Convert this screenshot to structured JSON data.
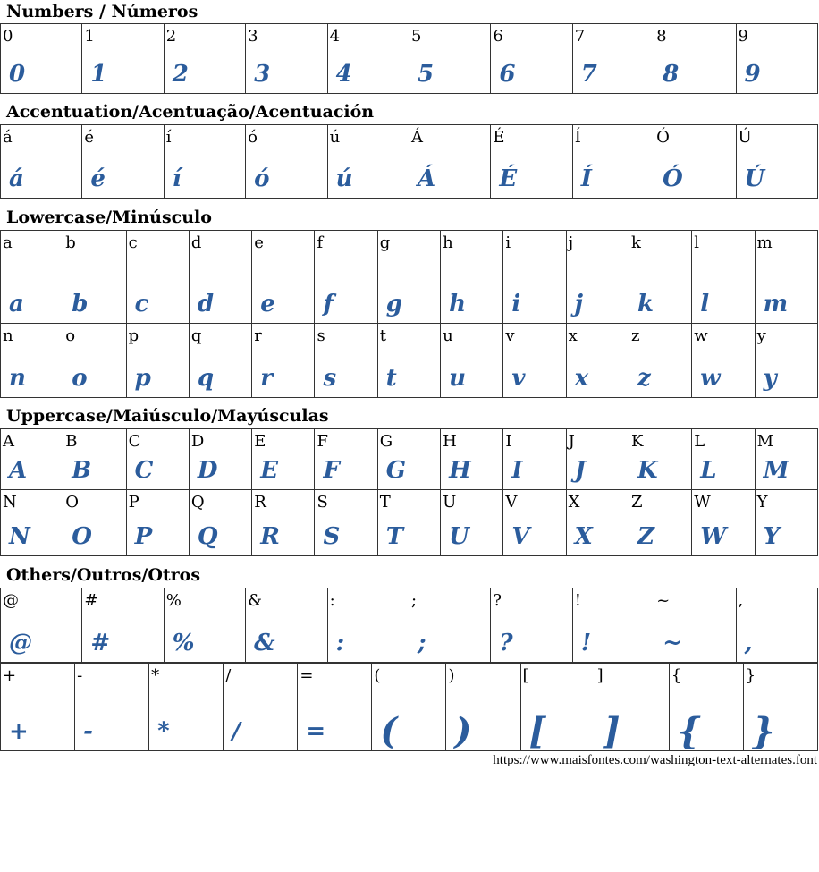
{
  "glyph_color": "#2b5c9c",
  "sections": [
    {
      "title": "Numbers / Números",
      "rows": [
        [
          "0",
          "1",
          "2",
          "3",
          "4",
          "5",
          "6",
          "7",
          "8",
          "9"
        ]
      ]
    },
    {
      "title": "Accentuation/Acentuação/Acentuación",
      "rows": [
        [
          "á",
          "é",
          "í",
          "ó",
          "ú",
          "Á",
          "É",
          "Í",
          "Ó",
          "Ú"
        ]
      ]
    },
    {
      "title": "Lowercase/Minúsculo",
      "rows": [
        [
          "a",
          "b",
          "c",
          "d",
          "e",
          "f",
          "g",
          "h",
          "i",
          "j",
          "k",
          "l",
          "m"
        ],
        [
          "n",
          "o",
          "p",
          "q",
          "r",
          "s",
          "t",
          "u",
          "v",
          "x",
          "z",
          "w",
          "y"
        ]
      ]
    },
    {
      "title": "Uppercase/Maiúsculo/Mayúsculas",
      "rows": [
        [
          "A",
          "B",
          "C",
          "D",
          "E",
          "F",
          "G",
          "H",
          "I",
          "J",
          "K",
          "L",
          "M"
        ],
        [
          "N",
          "O",
          "P",
          "Q",
          "R",
          "S",
          "T",
          "U",
          "V",
          "X",
          "Z",
          "W",
          "Y"
        ]
      ]
    },
    {
      "title": "Others/Outros/Otros",
      "rows": [
        [
          "@",
          "#",
          "%",
          "&",
          ":",
          ";",
          "?",
          "!",
          "~",
          ","
        ]
      ],
      "extra_rows": [
        [
          "+",
          "-",
          "*",
          "/",
          "=",
          "(",
          ")",
          "[",
          "]",
          "{",
          "}"
        ]
      ]
    }
  ],
  "footer_url": "https://www.maisfontes.com/washington-text-alternates.font"
}
